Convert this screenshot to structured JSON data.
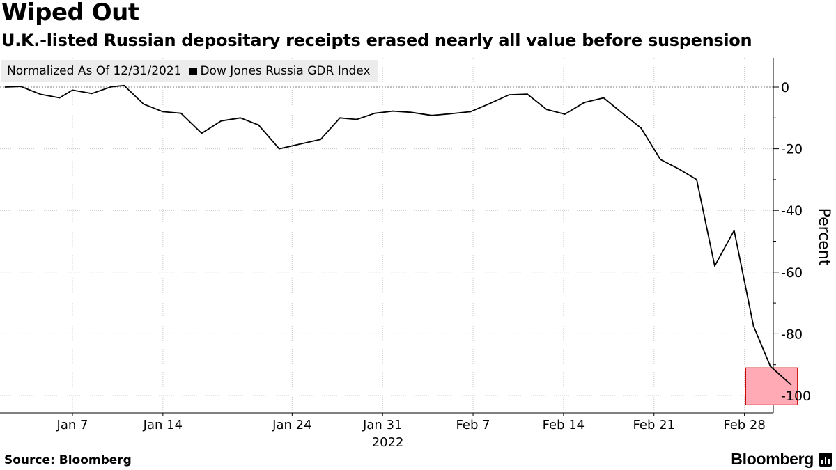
{
  "title": "Wiped Out",
  "subtitle": "U.K.-listed Russian depositary receipts erased nearly all value before suspension",
  "legend": {
    "note": "Normalized As Of 12/31/2021",
    "series_label": "Dow Jones Russia GDR Index"
  },
  "source": "Source: Bloomberg",
  "brand": "Bloomberg",
  "colors": {
    "line": "#000000",
    "grid": "#c8c8c8",
    "highlight_fill": "#ffaab4",
    "highlight_stroke": "#c80000",
    "legend_bg": "#ececec"
  },
  "chart_data": {
    "type": "line",
    "title": "Wiped Out",
    "subtitle": "U.K.-listed Russian depositary receipts erased nearly all value before suspension",
    "ylabel": "Percent",
    "xlabel": "2022",
    "ylim": [
      -105,
      9
    ],
    "y_ticks": [
      0,
      -20,
      -40,
      -60,
      -80,
      -100
    ],
    "x_ticks": [
      {
        "label": "Jan 7",
        "day": 7
      },
      {
        "label": "Jan 14",
        "day": 14
      },
      {
        "label": "Jan 24",
        "day": 24
      },
      {
        "label": "Jan 31",
        "day": 31
      },
      {
        "label": "Feb 7",
        "day": 38
      },
      {
        "label": "Feb 14",
        "day": 45
      },
      {
        "label": "Feb 21",
        "day": 52
      },
      {
        "label": "Feb 28",
        "day": 59
      }
    ],
    "year_label": "2022",
    "x_domain": [
      1.8,
      63.4
    ],
    "reference_line": 0,
    "highlight": {
      "x_start": 59.1,
      "x_end": 63.1,
      "y_top": -91,
      "y_bottom": -103
    },
    "series": [
      {
        "name": "Dow Jones Russia GDR Index",
        "x": [
          1.8,
          3,
          4.5,
          6,
          7,
          8.5,
          10,
          11,
          12.5,
          14,
          15.4,
          17,
          18.5,
          20,
          21.4,
          23,
          26.2,
          27.7,
          29,
          30.4,
          31.8,
          33.2,
          34.8,
          36.2,
          37.8,
          39.2,
          40.8,
          42.2,
          43.7,
          45.1,
          46.6,
          48.1,
          49.5,
          51,
          52.5,
          53.9,
          55.3,
          56.7,
          58.2,
          59.7,
          61,
          62.6
        ],
        "y": [
          0.0,
          0.2,
          -2.3,
          -3.5,
          -1.0,
          -2.1,
          0.1,
          0.5,
          -5.5,
          -8.0,
          -8.5,
          -15.0,
          -11.0,
          -10.0,
          -12.3,
          -20.0,
          -17.0,
          -10.0,
          -10.5,
          -8.5,
          -7.8,
          -8.2,
          -9.2,
          -8.7,
          -8.0,
          -5.5,
          -2.5,
          -2.3,
          -7.3,
          -8.8,
          -5.0,
          -3.5,
          -8.3,
          -13.3,
          -23.5,
          -26.5,
          -30.0,
          -58.0,
          -46.5,
          -77.5,
          -90.5,
          -96.5
        ]
      }
    ]
  }
}
